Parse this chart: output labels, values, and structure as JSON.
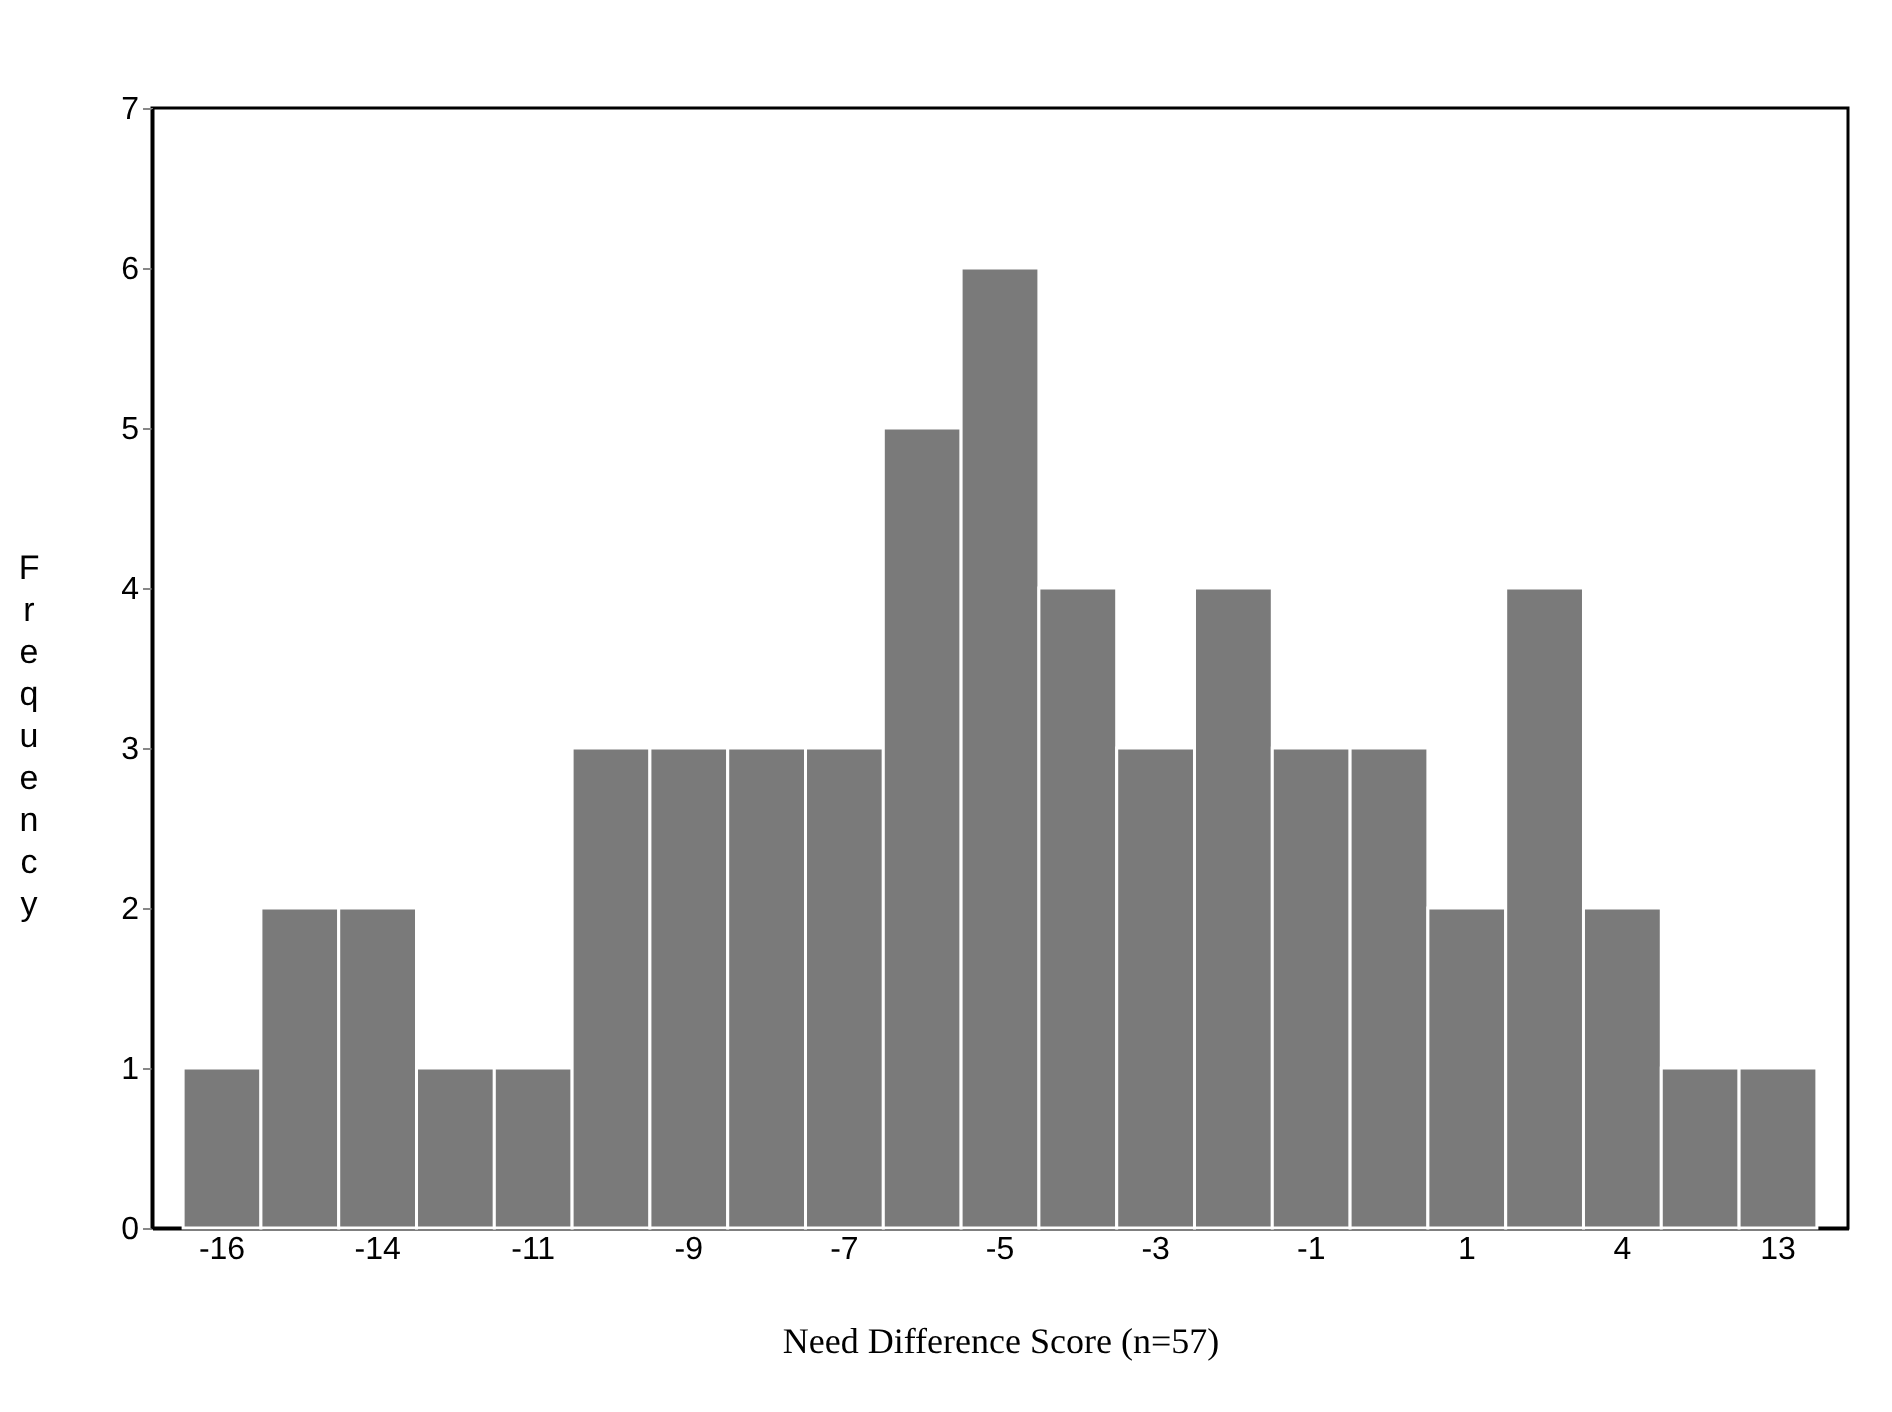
{
  "chart_data": {
    "type": "bar",
    "xlabel": "Need Difference Score (n=57)",
    "ylabel": "Frequency",
    "categories": [
      "-16",
      null,
      "-14",
      null,
      "-11",
      null,
      "-9",
      null,
      "-7",
      null,
      "-5",
      null,
      "-3",
      null,
      "-1",
      null,
      "1",
      null,
      "4",
      null,
      "13"
    ],
    "values": [
      1,
      2,
      2,
      1,
      1,
      3,
      3,
      3,
      3,
      5,
      6,
      4,
      3,
      4,
      3,
      3,
      2,
      4,
      2,
      1,
      1
    ],
    "color": "#7a7a7a",
    "ylim": [
      0,
      7
    ],
    "yticks": [
      0,
      1,
      2,
      3,
      4,
      5,
      6,
      7
    ],
    "grid": false
  }
}
